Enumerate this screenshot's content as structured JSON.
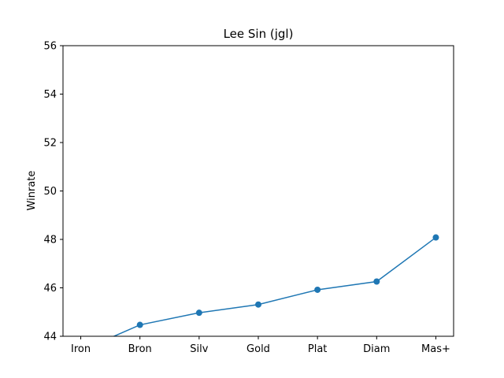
{
  "chart_data": {
    "type": "line",
    "title": "Lee Sin (jgl)",
    "xlabel": "",
    "ylabel": "Winrate",
    "categories": [
      "Iron",
      "Bron",
      "Silv",
      "Gold",
      "Plat",
      "Diam",
      "Mas+"
    ],
    "values": [
      43.4,
      44.47,
      44.97,
      45.31,
      45.92,
      46.26,
      48.08
    ],
    "ylim": [
      44,
      56
    ],
    "yticks": [
      44,
      46,
      48,
      50,
      52,
      54,
      56
    ],
    "grid": false,
    "legend": "none",
    "colors": {
      "series": "#1f77b4",
      "axis": "#000000"
    }
  }
}
